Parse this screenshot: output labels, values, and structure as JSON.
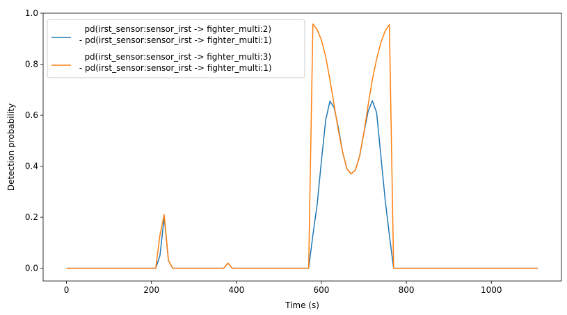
{
  "chart_data": {
    "type": "line",
    "xlabel": "Time (s)",
    "ylabel": "Detection probability",
    "xlim": [
      -55,
      1165
    ],
    "ylim": [
      -0.05,
      1.0
    ],
    "xticks": [
      0,
      200,
      400,
      600,
      800,
      1000
    ],
    "xtick_labels": [
      "0",
      "200",
      "400",
      "600",
      "800",
      "1000"
    ],
    "yticks": [
      0.0,
      0.2,
      0.4,
      0.6,
      0.8,
      1.0
    ],
    "ytick_labels": [
      "0.0",
      "0.2",
      "0.4",
      "0.6",
      "0.8",
      "1.0"
    ],
    "grid": false,
    "legend_position": "upper-left",
    "series": [
      {
        "name": "pd(irst_sensor:sensor_irst -> fighter_multi:2)\n - pd(irst_sensor:sensor_irst -> fighter_multi:1)",
        "legend_lines": [
          "   pd(irst_sensor:sensor_irst -> fighter_multi:2)",
          " - pd(irst_sensor:sensor_irst -> fighter_multi:1)"
        ],
        "color": "#1f77b4",
        "x": [
          0,
          210,
          220,
          230,
          240,
          250,
          370,
          380,
          390,
          570,
          580,
          590,
          600,
          610,
          620,
          630,
          640,
          650,
          660,
          670,
          680,
          690,
          700,
          710,
          720,
          730,
          740,
          750,
          760,
          770,
          1110
        ],
        "y": [
          0,
          0,
          0.05,
          0.2,
          0.03,
          0,
          0,
          0.02,
          0,
          0,
          0.13,
          0.25,
          0.42,
          0.58,
          0.655,
          0.63,
          0.55,
          0.455,
          0.39,
          0.37,
          0.385,
          0.44,
          0.53,
          0.615,
          0.657,
          0.61,
          0.44,
          0.27,
          0.13,
          0,
          0
        ]
      },
      {
        "name": "pd(irst_sensor:sensor_irst -> fighter_multi:3)\n - pd(irst_sensor:sensor_irst -> fighter_multi:1)",
        "legend_lines": [
          "   pd(irst_sensor:sensor_irst -> fighter_multi:3)",
          " - pd(irst_sensor:sensor_irst -> fighter_multi:1)"
        ],
        "color": "#ff7f0e",
        "x": [
          0,
          210,
          220,
          230,
          240,
          250,
          370,
          380,
          390,
          570,
          580,
          590,
          600,
          610,
          620,
          630,
          640,
          650,
          660,
          670,
          680,
          690,
          700,
          710,
          720,
          730,
          740,
          750,
          760,
          770,
          1110
        ],
        "y": [
          0,
          0,
          0.13,
          0.21,
          0.03,
          0,
          0,
          0.02,
          0,
          0,
          0.958,
          0.935,
          0.895,
          0.83,
          0.74,
          0.64,
          0.54,
          0.455,
          0.39,
          0.37,
          0.385,
          0.44,
          0.53,
          0.64,
          0.74,
          0.82,
          0.885,
          0.93,
          0.955,
          0,
          0
        ]
      }
    ]
  }
}
